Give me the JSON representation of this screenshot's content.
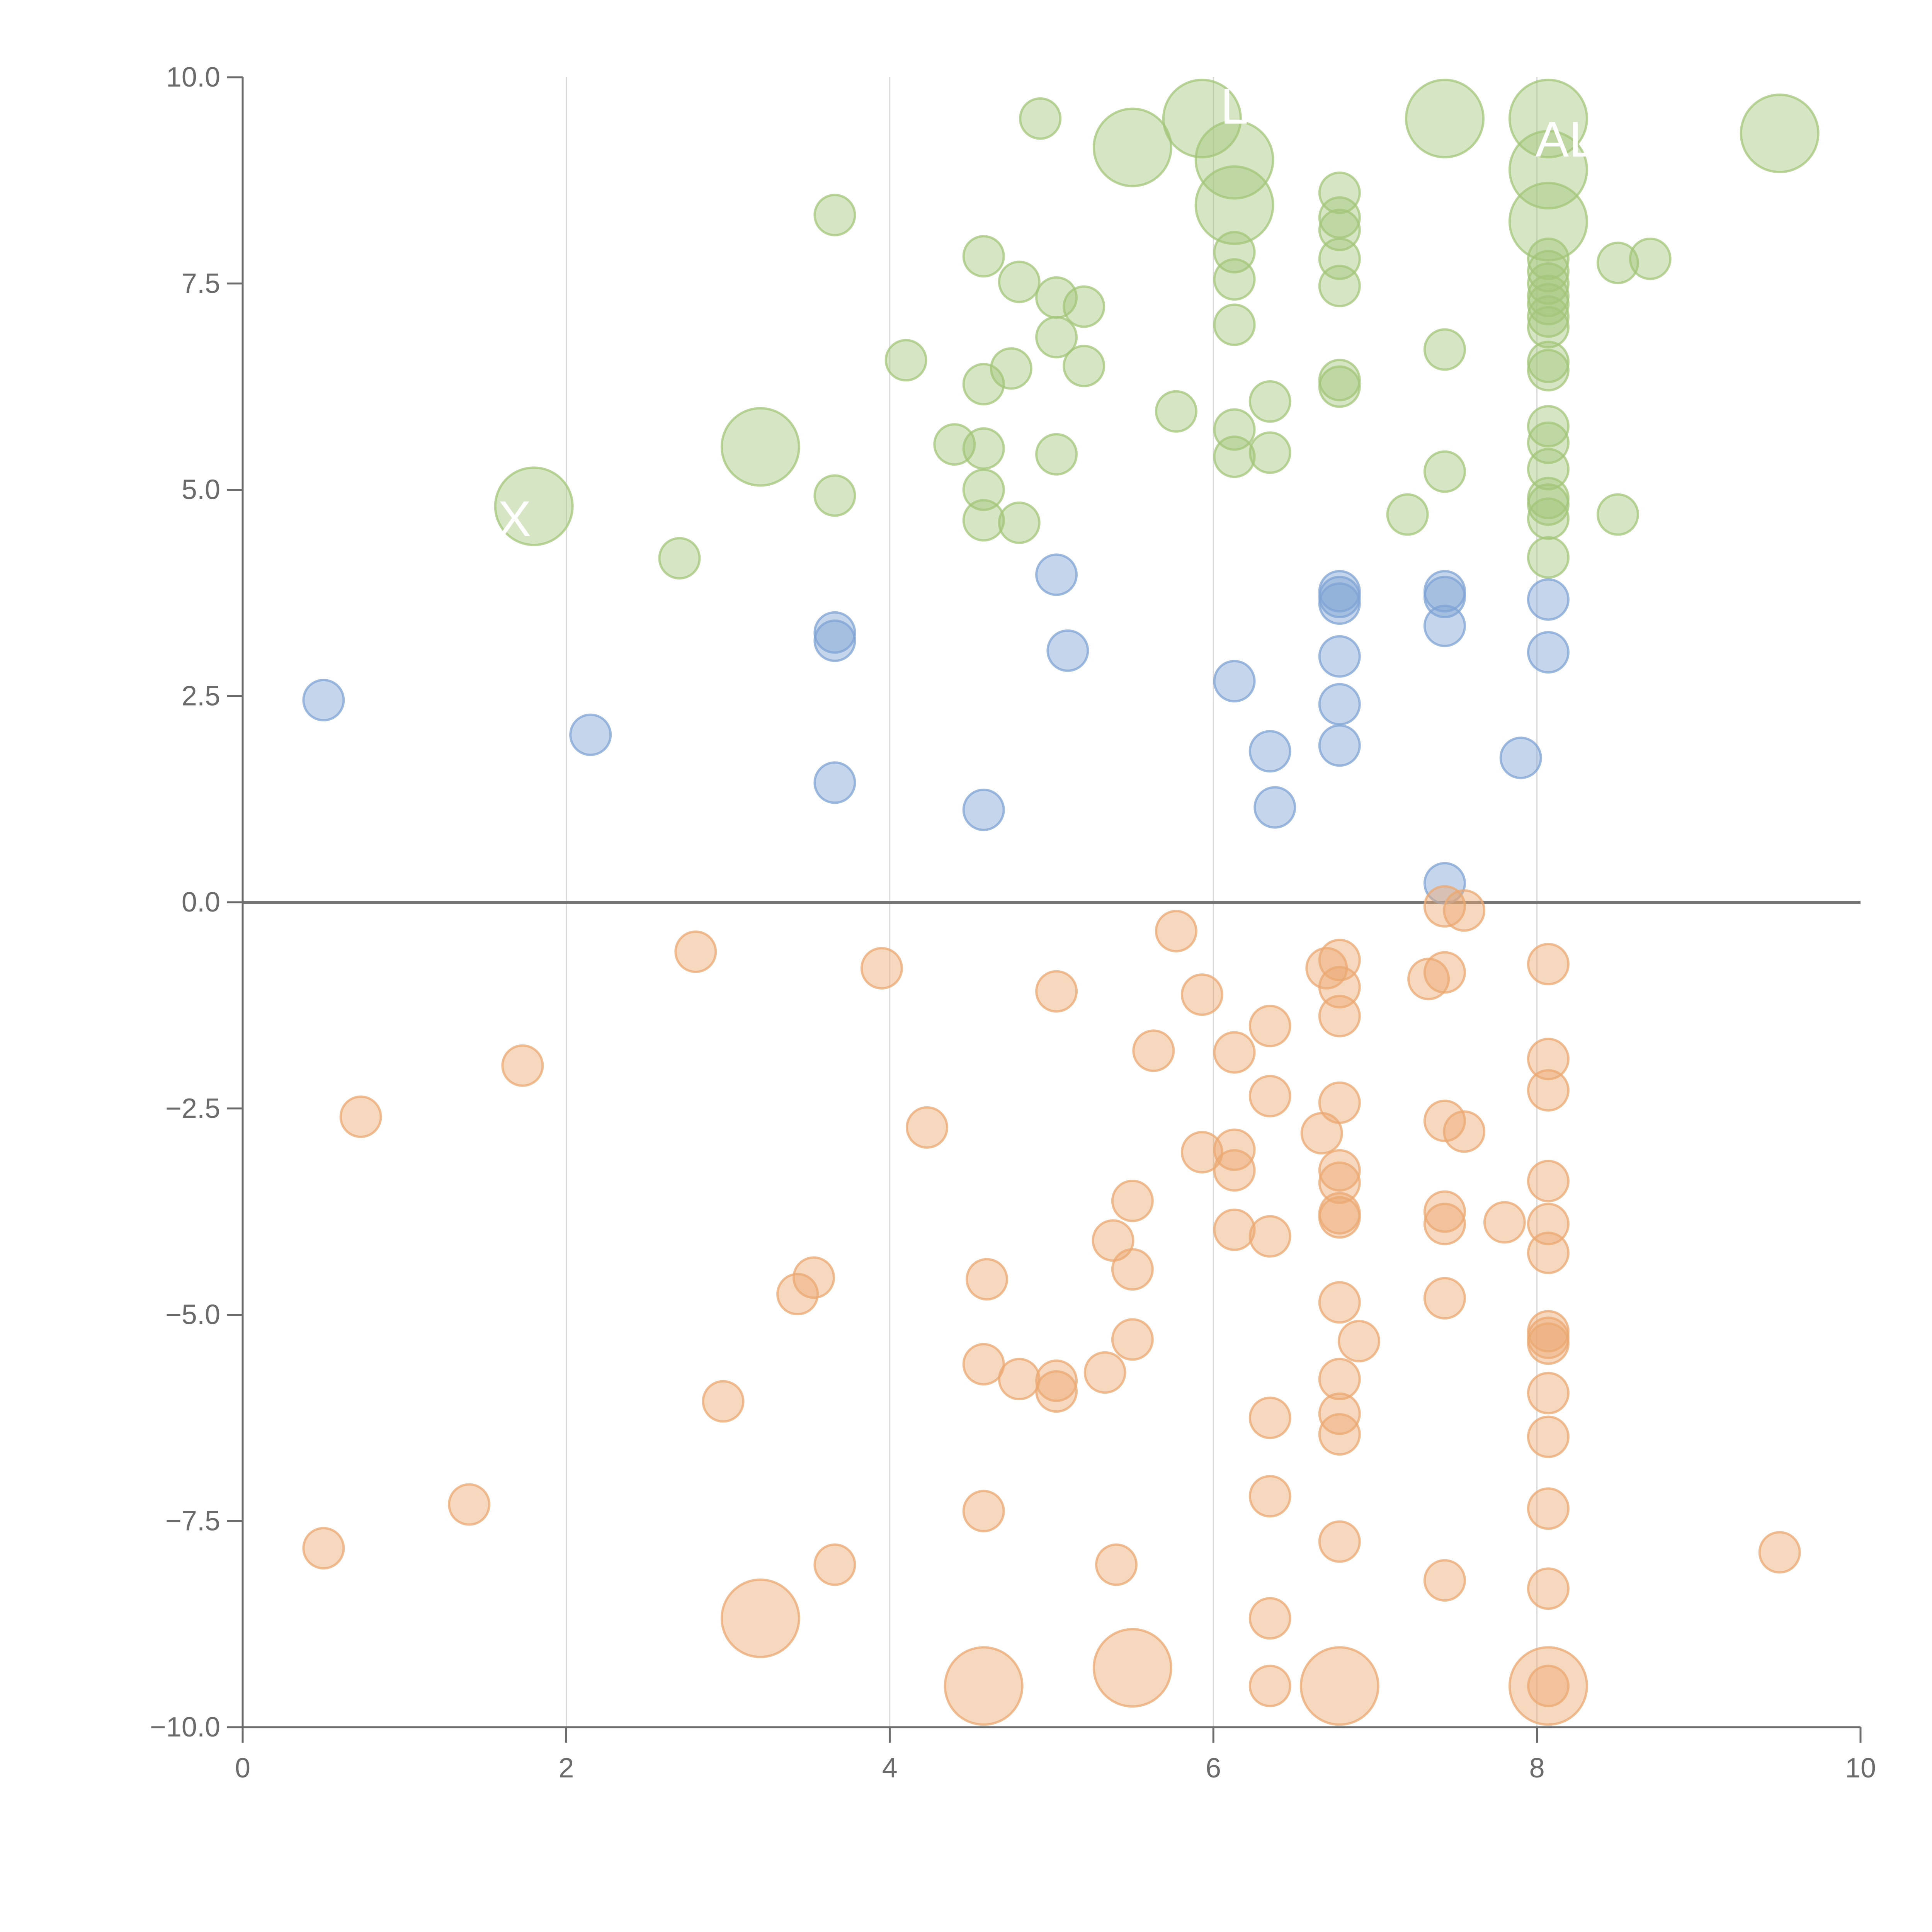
{
  "chart_data": {
    "type": "scatter",
    "title": "",
    "xlabel": "",
    "ylabel": "",
    "xlim": [
      0,
      10
    ],
    "ylim": [
      -10,
      10
    ],
    "x_ticks": [
      "0",
      "2",
      "4",
      "6",
      "8",
      "10"
    ],
    "y_ticks": [
      "−10.0",
      "−7.5",
      "−5.0",
      "−2.5",
      "0.0",
      "2.5",
      "5.0",
      "7.5",
      "10.0"
    ],
    "x_tick_values": [
      0,
      2,
      4,
      6,
      8,
      10
    ],
    "y_tick_values": [
      -10,
      -7.5,
      -5,
      -2.5,
      0,
      2.5,
      5,
      7.5,
      10
    ],
    "x_grid": true,
    "y_grid": false,
    "zero_line": true,
    "legend": "none",
    "series": [
      {
        "color": "#a3c57a",
        "points": [
          [
            4.93,
            9.5,
            1
          ],
          [
            5.93,
            9.5,
            3
          ],
          [
            7.43,
            9.5,
            3
          ],
          [
            8.07,
            9.5,
            3
          ],
          [
            9.5,
            9.32,
            3
          ],
          [
            5.5,
            9.15,
            3
          ],
          [
            6.13,
            9.0,
            3
          ],
          [
            8.07,
            8.88,
            3
          ],
          [
            6.13,
            8.45,
            3
          ],
          [
            8.07,
            8.25,
            3
          ],
          [
            3.66,
            8.33,
            1
          ],
          [
            6.78,
            8.6,
            1
          ],
          [
            6.78,
            8.3,
            1
          ],
          [
            6.78,
            8.15,
            1
          ],
          [
            4.58,
            7.83,
            1
          ],
          [
            6.13,
            7.88,
            1
          ],
          [
            6.78,
            7.8,
            1
          ],
          [
            8.07,
            7.8,
            1
          ],
          [
            8.5,
            7.75,
            1
          ],
          [
            8.7,
            7.8,
            1
          ],
          [
            4.8,
            7.52,
            1
          ],
          [
            6.13,
            7.55,
            1
          ],
          [
            6.78,
            7.47,
            1
          ],
          [
            8.07,
            7.65,
            1
          ],
          [
            8.07,
            7.5,
            1
          ],
          [
            5.03,
            7.33,
            1
          ],
          [
            5.2,
            7.22,
            1
          ],
          [
            8.07,
            7.35,
            1
          ],
          [
            8.07,
            7.25,
            1
          ],
          [
            8.07,
            7.1,
            1
          ],
          [
            6.13,
            7.0,
            1
          ],
          [
            8.07,
            6.97,
            1
          ],
          [
            4.1,
            6.57,
            1
          ],
          [
            4.75,
            6.47,
            1
          ],
          [
            5.2,
            6.5,
            1
          ],
          [
            5.03,
            6.85,
            1
          ],
          [
            7.43,
            6.7,
            1
          ],
          [
            8.07,
            6.55,
            1
          ],
          [
            8.07,
            6.45,
            1
          ],
          [
            4.58,
            6.28,
            1
          ],
          [
            6.78,
            6.33,
            1
          ],
          [
            6.78,
            6.25,
            1
          ],
          [
            6.35,
            6.07,
            1
          ],
          [
            5.77,
            5.95,
            1
          ],
          [
            3.2,
            5.52,
            3
          ],
          [
            8.07,
            5.77,
            1
          ],
          [
            6.13,
            5.73,
            1
          ],
          [
            4.4,
            5.55,
            1
          ],
          [
            4.58,
            5.5,
            1
          ],
          [
            8.07,
            5.57,
            1
          ],
          [
            6.13,
            5.4,
            1
          ],
          [
            6.35,
            5.45,
            1
          ],
          [
            5.03,
            5.43,
            1
          ],
          [
            7.43,
            5.22,
            1
          ],
          [
            8.07,
            5.25,
            1
          ],
          [
            3.66,
            4.93,
            1
          ],
          [
            4.58,
            5.0,
            1
          ],
          [
            8.07,
            4.9,
            1
          ],
          [
            8.07,
            4.82,
            1
          ],
          [
            1.8,
            4.8,
            3
          ],
          [
            4.58,
            4.63,
            1
          ],
          [
            4.8,
            4.6,
            1
          ],
          [
            7.2,
            4.7,
            1
          ],
          [
            8.5,
            4.7,
            1
          ],
          [
            8.07,
            4.65,
            1
          ],
          [
            2.7,
            4.17,
            1
          ],
          [
            8.07,
            4.18,
            1
          ]
        ]
      },
      {
        "color": "#7fa3d4",
        "points": [
          [
            5.03,
            3.97,
            1
          ],
          [
            6.78,
            3.77,
            1
          ],
          [
            6.78,
            3.7,
            1
          ],
          [
            6.78,
            3.62,
            1
          ],
          [
            7.43,
            3.77,
            1
          ],
          [
            7.43,
            3.7,
            1
          ],
          [
            8.07,
            3.67,
            1
          ],
          [
            3.66,
            3.27,
            1
          ],
          [
            3.66,
            3.17,
            1
          ],
          [
            7.43,
            3.35,
            1
          ],
          [
            5.1,
            3.05,
            1
          ],
          [
            8.07,
            3.03,
            1
          ],
          [
            6.78,
            2.98,
            1
          ],
          [
            6.13,
            2.68,
            1
          ],
          [
            0.5,
            2.45,
            1
          ],
          [
            6.78,
            2.4,
            1
          ],
          [
            2.15,
            2.03,
            1
          ],
          [
            6.78,
            1.9,
            1
          ],
          [
            6.35,
            1.83,
            1
          ],
          [
            7.9,
            1.75,
            1
          ],
          [
            3.66,
            1.45,
            1
          ],
          [
            6.38,
            1.15,
            1
          ],
          [
            4.58,
            1.12,
            1
          ],
          [
            7.43,
            0.23,
            1
          ]
        ]
      },
      {
        "color": "#eba872",
        "points": [
          [
            7.43,
            -0.05,
            1
          ],
          [
            7.55,
            -0.1,
            1
          ],
          [
            5.77,
            -0.35,
            1
          ],
          [
            2.8,
            -0.6,
            1
          ],
          [
            6.78,
            -0.7,
            1
          ],
          [
            6.7,
            -0.8,
            1
          ],
          [
            3.95,
            -0.8,
            1
          ],
          [
            7.43,
            -0.85,
            1
          ],
          [
            8.07,
            -0.75,
            1
          ],
          [
            7.33,
            -0.93,
            1
          ],
          [
            6.78,
            -1.03,
            1
          ],
          [
            5.03,
            -1.08,
            1
          ],
          [
            5.93,
            -1.12,
            1
          ],
          [
            6.78,
            -1.38,
            1
          ],
          [
            6.35,
            -1.5,
            1
          ],
          [
            5.63,
            -1.8,
            1
          ],
          [
            6.13,
            -1.82,
            1
          ],
          [
            8.07,
            -1.9,
            1
          ],
          [
            1.73,
            -1.98,
            1
          ],
          [
            8.07,
            -2.28,
            1
          ],
          [
            6.35,
            -2.35,
            1
          ],
          [
            6.78,
            -2.43,
            1
          ],
          [
            0.73,
            -2.6,
            1
          ],
          [
            7.43,
            -2.65,
            1
          ],
          [
            4.23,
            -2.73,
            1
          ],
          [
            6.67,
            -2.8,
            1
          ],
          [
            7.55,
            -2.78,
            1
          ],
          [
            6.13,
            -3.0,
            1
          ],
          [
            5.93,
            -3.03,
            1
          ],
          [
            6.78,
            -3.25,
            1
          ],
          [
            6.13,
            -3.25,
            1
          ],
          [
            8.07,
            -3.38,
            1
          ],
          [
            6.78,
            -3.4,
            1
          ],
          [
            5.5,
            -3.62,
            1
          ],
          [
            7.43,
            -3.75,
            1
          ],
          [
            6.78,
            -3.77,
            1
          ],
          [
            6.78,
            -3.82,
            1
          ],
          [
            7.43,
            -3.9,
            1
          ],
          [
            7.8,
            -3.88,
            1
          ],
          [
            8.07,
            -3.9,
            1
          ],
          [
            6.13,
            -3.97,
            1
          ],
          [
            6.35,
            -4.05,
            1
          ],
          [
            5.38,
            -4.1,
            1
          ],
          [
            8.07,
            -4.25,
            1
          ],
          [
            5.5,
            -4.45,
            1
          ],
          [
            3.53,
            -4.55,
            1
          ],
          [
            4.6,
            -4.57,
            1
          ],
          [
            3.43,
            -4.75,
            1
          ],
          [
            7.43,
            -4.8,
            1
          ],
          [
            6.78,
            -4.85,
            1
          ],
          [
            8.07,
            -5.2,
            1
          ],
          [
            8.07,
            -5.28,
            1
          ],
          [
            5.5,
            -5.3,
            1
          ],
          [
            6.9,
            -5.32,
            1
          ],
          [
            8.07,
            -5.35,
            1
          ],
          [
            4.58,
            -5.6,
            1
          ],
          [
            5.33,
            -5.7,
            1
          ],
          [
            4.8,
            -5.78,
            1
          ],
          [
            5.03,
            -5.8,
            1
          ],
          [
            6.78,
            -5.78,
            1
          ],
          [
            5.03,
            -5.93,
            1
          ],
          [
            8.07,
            -5.95,
            1
          ],
          [
            2.97,
            -6.05,
            1
          ],
          [
            6.78,
            -6.2,
            1
          ],
          [
            6.35,
            -6.25,
            1
          ],
          [
            6.78,
            -6.45,
            1
          ],
          [
            8.07,
            -6.48,
            1
          ],
          [
            6.35,
            -7.2,
            1
          ],
          [
            1.4,
            -7.3,
            1
          ],
          [
            8.07,
            -7.35,
            1
          ],
          [
            4.58,
            -7.38,
            1
          ],
          [
            6.78,
            -7.75,
            1
          ],
          [
            0.5,
            -7.83,
            1
          ],
          [
            9.5,
            -7.88,
            1
          ],
          [
            3.66,
            -8.03,
            1
          ],
          [
            5.4,
            -8.03,
            1
          ],
          [
            7.43,
            -8.22,
            1
          ],
          [
            8.07,
            -8.32,
            1
          ],
          [
            3.2,
            -8.68,
            3
          ],
          [
            6.35,
            -8.68,
            1
          ],
          [
            5.5,
            -9.28,
            3
          ],
          [
            4.58,
            -9.5,
            3
          ],
          [
            6.35,
            -9.5,
            1
          ],
          [
            6.78,
            -9.5,
            3
          ],
          [
            8.07,
            -9.5,
            3
          ],
          [
            8.07,
            -9.5,
            1
          ]
        ]
      }
    ]
  },
  "annotations": [
    {
      "text": "X",
      "x": 1.68,
      "y": 4.6
    },
    {
      "text": "AL",
      "x": 8.18,
      "y": 9.2
    },
    {
      "text": "L",
      "x": 6.13,
      "y": 9.6
    }
  ]
}
